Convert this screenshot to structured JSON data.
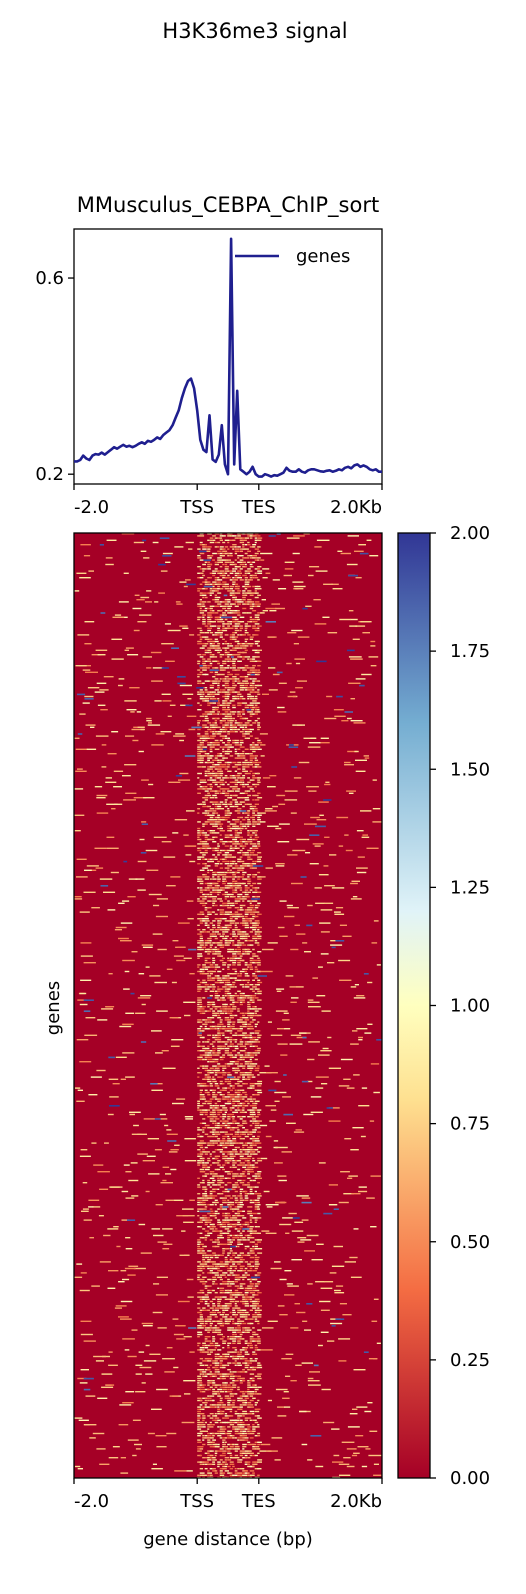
{
  "figure": {
    "suptitle": "H3K36me3 signal",
    "sample_title": "MMusculus_CEBPA_ChIP_sort"
  },
  "chart_data": [
    {
      "type": "line",
      "title": "MMusculus_CEBPA_ChIP_sort",
      "xlabel": "",
      "ylabel": "",
      "x_tick_labels": [
        "-2.0",
        "TSS",
        "TES",
        "2.0Kb"
      ],
      "y_ticks": [
        0.2,
        0.6
      ],
      "y_tick_labels": [
        "0.2",
        "0.6"
      ],
      "ylim": [
        0.18,
        0.7
      ],
      "legend": {
        "position": "top-right",
        "entries": [
          "genes"
        ]
      },
      "series": [
        {
          "name": "genes",
          "color": "#1f1f8f",
          "x_unit": "profile bin (0-100; TSS=40, TES=60)",
          "points": [
            [
              0,
              0.226
            ],
            [
              1,
              0.226
            ],
            [
              2,
              0.229
            ],
            [
              3,
              0.238
            ],
            [
              4,
              0.232
            ],
            [
              5,
              0.229
            ],
            [
              6,
              0.238
            ],
            [
              7,
              0.241
            ],
            [
              8,
              0.24
            ],
            [
              9,
              0.244
            ],
            [
              10,
              0.24
            ],
            [
              11,
              0.245
            ],
            [
              12,
              0.25
            ],
            [
              13,
              0.255
            ],
            [
              14,
              0.252
            ],
            [
              15,
              0.256
            ],
            [
              16,
              0.26
            ],
            [
              17,
              0.256
            ],
            [
              18,
              0.258
            ],
            [
              19,
              0.255
            ],
            [
              20,
              0.258
            ],
            [
              21,
              0.262
            ],
            [
              22,
              0.265
            ],
            [
              23,
              0.262
            ],
            [
              24,
              0.268
            ],
            [
              25,
              0.266
            ],
            [
              26,
              0.27
            ],
            [
              27,
              0.275
            ],
            [
              28,
              0.272
            ],
            [
              29,
              0.28
            ],
            [
              30,
              0.285
            ],
            [
              31,
              0.29
            ],
            [
              32,
              0.3
            ],
            [
              33,
              0.315
            ],
            [
              34,
              0.33
            ],
            [
              35,
              0.355
            ],
            [
              36,
              0.375
            ],
            [
              37,
              0.39
            ],
            [
              38,
              0.395
            ],
            [
              39,
              0.375
            ],
            [
              40,
              0.33
            ],
            [
              41,
              0.27
            ],
            [
              42,
              0.25
            ],
            [
              43,
              0.245
            ],
            [
              44,
              0.32
            ],
            [
              45,
              0.23
            ],
            [
              46,
              0.225
            ],
            [
              47,
              0.24
            ],
            [
              48,
              0.3
            ],
            [
              49,
              0.22
            ],
            [
              50,
              0.2
            ],
            [
              51,
              0.68
            ],
            [
              52,
              0.22
            ],
            [
              53,
              0.37
            ],
            [
              54,
              0.21
            ],
            [
              55,
              0.205
            ],
            [
              56,
              0.2
            ],
            [
              57,
              0.205
            ],
            [
              58,
              0.215
            ],
            [
              59,
              0.2
            ],
            [
              60,
              0.195
            ],
            [
              61,
              0.195
            ],
            [
              62,
              0.2
            ],
            [
              63,
              0.198
            ],
            [
              64,
              0.195
            ],
            [
              65,
              0.198
            ],
            [
              66,
              0.197
            ],
            [
              67,
              0.2
            ],
            [
              68,
              0.203
            ],
            [
              69,
              0.213
            ],
            [
              70,
              0.207
            ],
            [
              71,
              0.205
            ],
            [
              72,
              0.205
            ],
            [
              73,
              0.21
            ],
            [
              74,
              0.205
            ],
            [
              75,
              0.203
            ],
            [
              76,
              0.208
            ],
            [
              77,
              0.21
            ],
            [
              78,
              0.21
            ],
            [
              79,
              0.208
            ],
            [
              80,
              0.206
            ],
            [
              81,
              0.205
            ],
            [
              82,
              0.207
            ],
            [
              83,
              0.208
            ],
            [
              84,
              0.205
            ],
            [
              85,
              0.207
            ],
            [
              86,
              0.21
            ],
            [
              87,
              0.208
            ],
            [
              88,
              0.213
            ],
            [
              89,
              0.215
            ],
            [
              90,
              0.212
            ],
            [
              91,
              0.218
            ],
            [
              92,
              0.22
            ],
            [
              93,
              0.215
            ],
            [
              94,
              0.218
            ],
            [
              95,
              0.215
            ],
            [
              96,
              0.21
            ],
            [
              97,
              0.208
            ],
            [
              98,
              0.21
            ],
            [
              99,
              0.205
            ],
            [
              100,
              0.205
            ]
          ]
        }
      ]
    },
    {
      "type": "heatmap",
      "title": "",
      "xlabel": "gene distance (bp)",
      "ylabel": "genes",
      "x_tick_labels": [
        "-2.0",
        "TSS",
        "TES",
        "2.0Kb"
      ],
      "colormap": "RdYlBu",
      "colormap_colors": [
        "#a50026",
        "#f46d43",
        "#fee090",
        "#e0f3f8",
        "#74add1",
        "#313695"
      ],
      "value_range": [
        0,
        2.0
      ],
      "colorbar_ticks": [
        "0.00",
        "0.25",
        "0.50",
        "0.75",
        "1.00",
        "1.25",
        "1.50",
        "1.75",
        "2.00"
      ],
      "background_value": 0.0,
      "gene_body_region": [
        "TSS",
        "TES"
      ],
      "description_of_values": "Most cells near 0.00 (dark red); dense scattered values of about 0.4-1.0 within the TSS-TES gene body region; sparse values near 0.5-0.9 and occasional values near 1.8-2.0 outside it, more frequent toward the top rows."
    }
  ]
}
